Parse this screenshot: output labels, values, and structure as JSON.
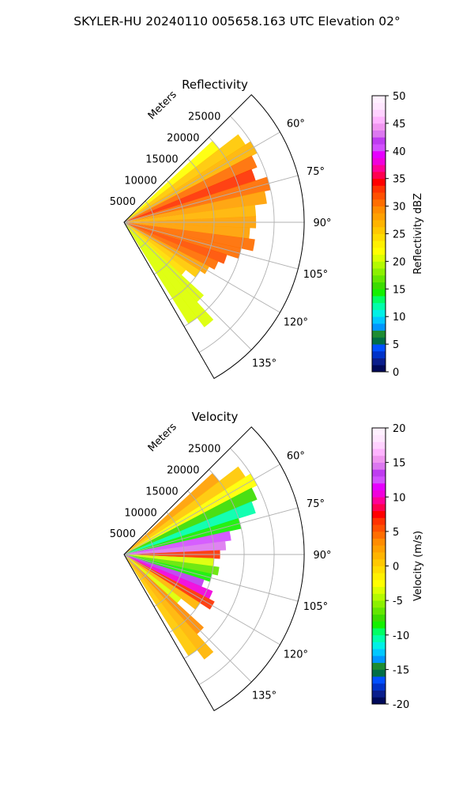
{
  "figure_title": "SKYLER-HU  20240110  005658.163 UTC Elevation 02°",
  "chart_data": [
    {
      "type": "heatmap",
      "projection": "polar-sector",
      "title": "Reflectivity",
      "range_label": "Meters",
      "range_ticks": [
        5000,
        10000,
        15000,
        20000,
        25000
      ],
      "range_max": 30000,
      "azimuth_range_deg": [
        45,
        150
      ],
      "azimuth_ticks": [
        "60°",
        "75°",
        "90°",
        "105°",
        "120°",
        "135°"
      ],
      "grid": true,
      "colorbar": {
        "label": "Reflectivity dBZ",
        "min": 0,
        "max": 50,
        "ticks": [
          0,
          5,
          10,
          15,
          20,
          25,
          30,
          35,
          40,
          45,
          50
        ],
        "colors": [
          "#000a5a",
          "#0a1e8c",
          "#0032c8",
          "#0050ff",
          "#006e46",
          "#1e8c32",
          "#0096ff",
          "#00c8ff",
          "#00f0e6",
          "#00ffaa",
          "#00ff64",
          "#14f000",
          "#3cdc00",
          "#64e600",
          "#8cf000",
          "#b4fa00",
          "#dcff00",
          "#ffff00",
          "#fff000",
          "#ffdc00",
          "#ffc800",
          "#ffb400",
          "#ffa000",
          "#ff8c00",
          "#ff6e00",
          "#ff5000",
          "#ff3200",
          "#ff0000",
          "#ff0050",
          "#ff0096",
          "#f000dc",
          "#e600ff",
          "#d250ff",
          "#be3cf0",
          "#dc78f0",
          "#f096f0",
          "#ffb4ff",
          "#ffd2ff",
          "#ffe6ff",
          "#fff0ff"
        ]
      },
      "echo_rays": [
        {
          "azimuth": 50,
          "extent_m": 20000,
          "value": 22
        },
        {
          "azimuth": 55,
          "extent_m": 24000,
          "value": 26
        },
        {
          "azimuth": 60,
          "extent_m": 25000,
          "value": 27
        },
        {
          "azimuth": 65,
          "extent_m": 24000,
          "value": 30
        },
        {
          "azimuth": 70,
          "extent_m": 23000,
          "value": 33
        },
        {
          "azimuth": 75,
          "extent_m": 25000,
          "value": 30
        },
        {
          "azimuth": 80,
          "extent_m": 24000,
          "value": 28
        },
        {
          "azimuth": 85,
          "extent_m": 22000,
          "value": 27
        },
        {
          "azimuth": 90,
          "extent_m": 22000,
          "value": 28
        },
        {
          "azimuth": 95,
          "extent_m": 21000,
          "value": 28
        },
        {
          "azimuth": 100,
          "extent_m": 22000,
          "value": 30
        },
        {
          "azimuth": 105,
          "extent_m": 20000,
          "value": 31
        },
        {
          "azimuth": 110,
          "extent_m": 18000,
          "value": 32
        },
        {
          "azimuth": 115,
          "extent_m": 17000,
          "value": 30
        },
        {
          "azimuth": 120,
          "extent_m": 16000,
          "value": 28
        },
        {
          "azimuth": 125,
          "extent_m": 15000,
          "value": 26
        },
        {
          "azimuth": 130,
          "extent_m": 13000,
          "value": 24
        },
        {
          "azimuth": 135,
          "extent_m": 18000,
          "value": 21
        },
        {
          "azimuth": 140,
          "extent_m": 22000,
          "value": 20
        },
        {
          "azimuth": 145,
          "extent_m": 20000,
          "value": 20
        }
      ]
    },
    {
      "type": "heatmap",
      "projection": "polar-sector",
      "title": "Velocity",
      "range_label": "Meters",
      "range_ticks": [
        5000,
        10000,
        15000,
        20000,
        25000
      ],
      "range_max": 30000,
      "azimuth_range_deg": [
        45,
        150
      ],
      "azimuth_ticks": [
        "60°",
        "75°",
        "90°",
        "105°",
        "120°",
        "135°"
      ],
      "grid": true,
      "colorbar": {
        "label": "Velocity (m/s)",
        "min": -20,
        "max": 20,
        "ticks": [
          -20,
          -15,
          -10,
          -5,
          0,
          5,
          10,
          15,
          20
        ],
        "colors": [
          "#000a5a",
          "#0a1e8c",
          "#0032c8",
          "#0050ff",
          "#006e46",
          "#1e8c32",
          "#0096ff",
          "#00c8ff",
          "#00f0e6",
          "#00ffaa",
          "#00ff64",
          "#14f000",
          "#3cdc00",
          "#64e600",
          "#8cf000",
          "#b4fa00",
          "#dcff00",
          "#ffff00",
          "#fff000",
          "#ffdc00",
          "#ffc800",
          "#ffb400",
          "#ffa000",
          "#ff8c00",
          "#ff6e00",
          "#ff5000",
          "#ff3200",
          "#ff0000",
          "#ff0050",
          "#ff0096",
          "#f000dc",
          "#e600ff",
          "#d250ff",
          "#be3cf0",
          "#dc78f0",
          "#f096f0",
          "#ffb4ff",
          "#ffd2ff",
          "#ffe6ff",
          "#fff0ff"
        ]
      },
      "echo_rays": [
        {
          "azimuth": 50,
          "extent_m": 20000,
          "value": 2
        },
        {
          "azimuth": 55,
          "extent_m": 24000,
          "value": 0
        },
        {
          "azimuth": 60,
          "extent_m": 25000,
          "value": -3
        },
        {
          "azimuth": 65,
          "extent_m": 24000,
          "value": -8
        },
        {
          "azimuth": 70,
          "extent_m": 23000,
          "value": -11
        },
        {
          "azimuth": 75,
          "extent_m": 20000,
          "value": -9
        },
        {
          "azimuth": 80,
          "extent_m": 18000,
          "value": 12
        },
        {
          "azimuth": 85,
          "extent_m": 17000,
          "value": 14
        },
        {
          "azimuth": 90,
          "extent_m": 16000,
          "value": 6
        },
        {
          "azimuth": 95,
          "extent_m": 15000,
          "value": -4
        },
        {
          "azimuth": 100,
          "extent_m": 16000,
          "value": -7
        },
        {
          "azimuth": 105,
          "extent_m": 15000,
          "value": -9
        },
        {
          "azimuth": 110,
          "extent_m": 14000,
          "value": 13
        },
        {
          "azimuth": 115,
          "extent_m": 16000,
          "value": 10
        },
        {
          "azimuth": 120,
          "extent_m": 17000,
          "value": 6
        },
        {
          "azimuth": 125,
          "extent_m": 15000,
          "value": 1
        },
        {
          "azimuth": 130,
          "extent_m": 12000,
          "value": -4
        },
        {
          "azimuth": 135,
          "extent_m": 18000,
          "value": 3
        },
        {
          "azimuth": 140,
          "extent_m": 22000,
          "value": 1
        },
        {
          "azimuth": 145,
          "extent_m": 20000,
          "value": 0
        }
      ]
    }
  ]
}
